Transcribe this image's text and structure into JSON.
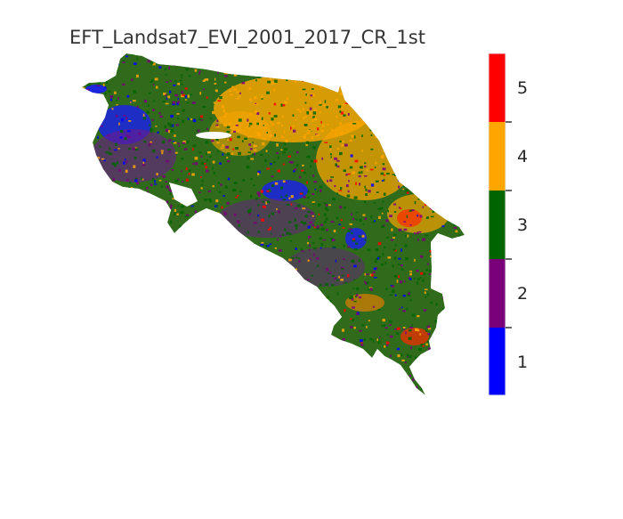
{
  "title": "EFT_Landsat7_EVI_2001_2017_CR_1st",
  "legend": {
    "classes": [
      {
        "value": "1",
        "color": "#0000ff"
      },
      {
        "value": "2",
        "color": "#7a007a"
      },
      {
        "value": "3",
        "color": "#006400"
      },
      {
        "value": "4",
        "color": "#ffa500"
      },
      {
        "value": "5",
        "color": "#ff0000"
      }
    ]
  }
}
